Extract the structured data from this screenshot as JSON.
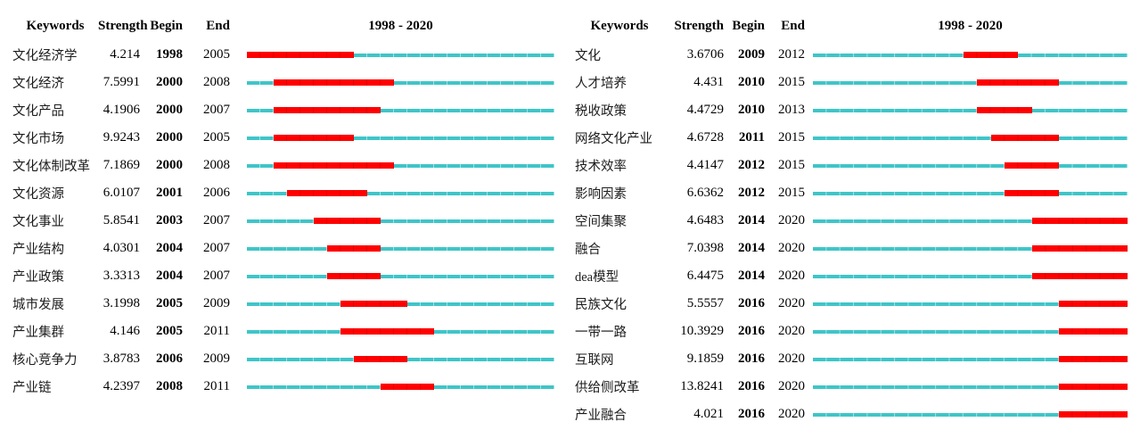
{
  "header": {
    "keywords": "Keywords",
    "strength": "Strength",
    "begin": "Begin",
    "end": "End"
  },
  "timeline": {
    "start_year": 1998,
    "end_year": 2020,
    "total_years": 23,
    "title": "1998 - 2020"
  },
  "colors": {
    "burst_red": "#ff0000",
    "burst_tick_red": "#e20000",
    "base_line_cyan": "#3fc5c8",
    "base_line_tick": "#9ce2e4",
    "text": "#000000"
  },
  "chart_data": [
    {
      "type": "table",
      "title": "1998 - 2020",
      "columns": [
        "Keywords",
        "Strength",
        "Begin",
        "End"
      ],
      "x_range": [
        1998,
        2020
      ],
      "legend": "red segment = burst period (Begin to End), cyan line = full 1998-2020 span",
      "rows": [
        {
          "keyword": "文化经济学",
          "strength": "4.214",
          "begin": 1998,
          "end": 2005
        },
        {
          "keyword": "文化经济",
          "strength": "7.5991",
          "begin": 2000,
          "end": 2008
        },
        {
          "keyword": "文化产品",
          "strength": "4.1906",
          "begin": 2000,
          "end": 2007
        },
        {
          "keyword": "文化市场",
          "strength": "9.9243",
          "begin": 2000,
          "end": 2005
        },
        {
          "keyword": "文化体制改革",
          "strength": "7.1869",
          "begin": 2000,
          "end": 2008
        },
        {
          "keyword": "文化资源",
          "strength": "6.0107",
          "begin": 2001,
          "end": 2006
        },
        {
          "keyword": "文化事业",
          "strength": "5.8541",
          "begin": 2003,
          "end": 2007
        },
        {
          "keyword": "产业结构",
          "strength": "4.0301",
          "begin": 2004,
          "end": 2007
        },
        {
          "keyword": "产业政策",
          "strength": "3.3313",
          "begin": 2004,
          "end": 2007
        },
        {
          "keyword": "城市发展",
          "strength": "3.1998",
          "begin": 2005,
          "end": 2009
        },
        {
          "keyword": "产业集群",
          "strength": "4.146",
          "begin": 2005,
          "end": 2011
        },
        {
          "keyword": "核心竞争力",
          "strength": "3.8783",
          "begin": 2006,
          "end": 2009
        },
        {
          "keyword": "产业链",
          "strength": "4.2397",
          "begin": 2008,
          "end": 2011
        }
      ]
    },
    {
      "type": "table",
      "title": "1998 - 2020",
      "columns": [
        "Keywords",
        "Strength",
        "Begin",
        "End"
      ],
      "x_range": [
        1998,
        2020
      ],
      "legend": "red segment = burst period (Begin to End), cyan line = full 1998-2020 span",
      "rows": [
        {
          "keyword": "文化",
          "strength": "3.6706",
          "begin": 2009,
          "end": 2012
        },
        {
          "keyword": "人才培养",
          "strength": "4.431",
          "begin": 2010,
          "end": 2015
        },
        {
          "keyword": "税收政策",
          "strength": "4.4729",
          "begin": 2010,
          "end": 2013
        },
        {
          "keyword": "网络文化产业",
          "strength": "4.6728",
          "begin": 2011,
          "end": 2015
        },
        {
          "keyword": "技术效率",
          "strength": "4.4147",
          "begin": 2012,
          "end": 2015
        },
        {
          "keyword": "影响因素",
          "strength": "6.6362",
          "begin": 2012,
          "end": 2015
        },
        {
          "keyword": "空间集聚",
          "strength": "4.6483",
          "begin": 2014,
          "end": 2020
        },
        {
          "keyword": "融合",
          "strength": "7.0398",
          "begin": 2014,
          "end": 2020
        },
        {
          "keyword": "dea模型",
          "strength": "6.4475",
          "begin": 2014,
          "end": 2020
        },
        {
          "keyword": "民族文化",
          "strength": "5.5557",
          "begin": 2016,
          "end": 2020
        },
        {
          "keyword": "一带一路",
          "strength": "10.3929",
          "begin": 2016,
          "end": 2020
        },
        {
          "keyword": "互联网",
          "strength": "9.1859",
          "begin": 2016,
          "end": 2020
        },
        {
          "keyword": "供给侧改革",
          "strength": "13.8241",
          "begin": 2016,
          "end": 2020
        },
        {
          "keyword": "产业融合",
          "strength": "4.021",
          "begin": 2016,
          "end": 2020
        }
      ]
    }
  ]
}
